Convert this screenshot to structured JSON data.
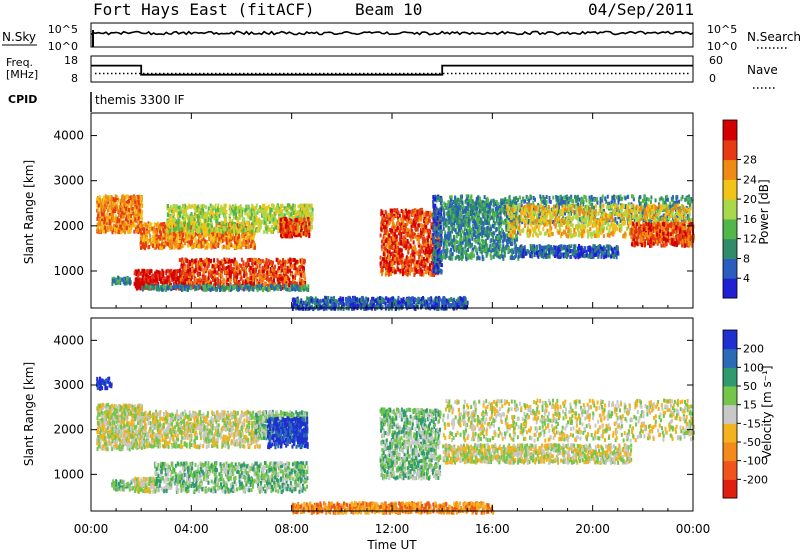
{
  "header": {
    "station": "Fort Hays East (fitACF)",
    "beam": "Beam 10",
    "date": "04/Sep/2011"
  },
  "noise_panel": {
    "left_label": "N.Sky",
    "right_label": "N.Search",
    "left_ticks": [
      "10^5",
      "10^0"
    ],
    "right_ticks": [
      "10^5",
      "10^0"
    ]
  },
  "freq_panel": {
    "left_label_line1": "Freq.",
    "left_label_line2": "[MHz]",
    "left_ticks": [
      "18",
      "8"
    ],
    "right_label": "Nave",
    "right_ticks": [
      "60",
      "0"
    ],
    "freq_steps": [
      {
        "start_hour": 0.0,
        "end_hour": 2.0,
        "freq_mhz": 14.3
      },
      {
        "start_hour": 2.0,
        "end_hour": 14.0,
        "freq_mhz": 10.8
      },
      {
        "start_hour": 14.0,
        "end_hour": 24.0,
        "freq_mhz": 14.3
      }
    ]
  },
  "cpid": {
    "label": "CPID",
    "value": "themis 3300 IF"
  },
  "x_axis": {
    "label": "Time UT",
    "ticks": [
      "00:00",
      "04:00",
      "08:00",
      "12:00",
      "16:00",
      "20:00",
      "00:00"
    ]
  },
  "chart_data": [
    {
      "type": "heatmap",
      "title": "",
      "xlabel": "Time UT",
      "ylabel": "Slant Range [km]",
      "xlim": [
        0,
        24
      ],
      "ylim": [
        180,
        4500
      ],
      "y_ticks": [
        "1000",
        "2000",
        "3000",
        "4000"
      ],
      "colorbar": {
        "label": "Power [dB]",
        "ticks": [
          "4",
          "8",
          "12",
          "16",
          "20",
          "24",
          "28"
        ],
        "colors": [
          "#1f1fd6",
          "#2a5dbf",
          "#2f8c6a",
          "#52b74a",
          "#a9d84a",
          "#f2c418",
          "#f08a12",
          "#e53a12",
          "#d40000"
        ]
      },
      "regions": [
        {
          "start_hour": 0.2,
          "end_hour": 2.0,
          "range_km": [
            1900,
            2700
          ],
          "level": 6
        },
        {
          "start_hour": 1.9,
          "end_hour": 6.5,
          "range_km": [
            1550,
            2100
          ],
          "level": 6
        },
        {
          "start_hour": 3.0,
          "end_hour": 8.8,
          "range_km": [
            1900,
            2500
          ],
          "level": 4
        },
        {
          "start_hour": 7.5,
          "end_hour": 8.7,
          "range_km": [
            1800,
            2200
          ],
          "level": 7
        },
        {
          "start_hour": 0.8,
          "end_hour": 1.6,
          "range_km": [
            750,
            900
          ],
          "level": 2
        },
        {
          "start_hour": 1.7,
          "end_hour": 4.0,
          "range_km": [
            650,
            1050
          ],
          "level": 8
        },
        {
          "start_hour": 3.5,
          "end_hour": 8.5,
          "range_km": [
            650,
            1300
          ],
          "level": 7
        },
        {
          "start_hour": 2.0,
          "end_hour": 8.7,
          "range_km": [
            620,
            720
          ],
          "level": 2
        },
        {
          "start_hour": 11.5,
          "end_hour": 13.9,
          "range_km": [
            950,
            2400
          ],
          "level": 7
        },
        {
          "start_hour": 13.6,
          "end_hour": 13.95,
          "range_km": [
            1000,
            2700
          ],
          "level": 1
        },
        {
          "start_hour": 14.0,
          "end_hour": 17.0,
          "range_km": [
            1300,
            2600
          ],
          "level": 2
        },
        {
          "start_hour": 14.2,
          "end_hour": 23.9,
          "range_km": [
            2100,
            2700
          ],
          "level": 2
        },
        {
          "start_hour": 16.5,
          "end_hour": 23.9,
          "range_km": [
            1800,
            2500
          ],
          "level": 5
        },
        {
          "start_hour": 21.5,
          "end_hour": 24.0,
          "range_km": [
            1600,
            2100
          ],
          "level": 7
        },
        {
          "start_hour": 17.0,
          "end_hour": 21.0,
          "range_km": [
            1350,
            1600
          ],
          "level": 1
        },
        {
          "start_hour": 8.0,
          "end_hour": 15.0,
          "range_km": [
            200,
            450
          ],
          "level": 1
        }
      ]
    },
    {
      "type": "heatmap",
      "title": "",
      "xlabel": "Time UT",
      "ylabel": "Slant Range [km]",
      "xlim": [
        0,
        24
      ],
      "ylim": [
        180,
        4500
      ],
      "y_ticks": [
        "1000",
        "2000",
        "3000",
        "4000"
      ],
      "colorbar": {
        "label": "Velocity [m s⁻¹]",
        "ticks": [
          "-200",
          "-100",
          "-50",
          "-15",
          "15",
          "50",
          "100",
          "200"
        ],
        "colors": [
          "#e11f0f",
          "#f0541a",
          "#f48a1a",
          "#f3b21f",
          "#c8c8c8",
          "#73c64a",
          "#2e9a6e",
          "#2a6bb8",
          "#1f2fd0"
        ]
      },
      "regions": [
        {
          "start_hour": 0.2,
          "end_hour": 2.0,
          "range_km": [
            1600,
            2600
          ],
          "level": 4
        },
        {
          "start_hour": 2.0,
          "end_hour": 6.7,
          "range_km": [
            1650,
            2450
          ],
          "level": 4
        },
        {
          "start_hour": 6.5,
          "end_hour": 8.6,
          "range_km": [
            1850,
            2450
          ],
          "level": 5
        },
        {
          "start_hour": 7.0,
          "end_hour": 8.6,
          "range_km": [
            1650,
            2300
          ],
          "level": 8
        },
        {
          "start_hour": 0.8,
          "end_hour": 1.6,
          "range_km": [
            700,
            900
          ],
          "level": 5
        },
        {
          "start_hour": 1.6,
          "end_hour": 2.6,
          "range_km": [
            650,
            950
          ],
          "level": 4
        },
        {
          "start_hour": 2.5,
          "end_hour": 8.6,
          "range_km": [
            650,
            1300
          ],
          "level": 5
        },
        {
          "start_hour": 0.2,
          "end_hour": 0.8,
          "range_km": [
            2950,
            3200
          ],
          "level": 8
        },
        {
          "start_hour": 11.5,
          "end_hour": 13.9,
          "range_km": [
            950,
            2500
          ],
          "level": 5
        },
        {
          "start_hour": 14.0,
          "end_hour": 24.0,
          "range_km": [
            1800,
            2700
          ],
          "level": 4
        },
        {
          "start_hour": 14.0,
          "end_hour": 21.5,
          "range_km": [
            1300,
            1700
          ],
          "level": 4
        },
        {
          "start_hour": 8.0,
          "end_hour": 16.0,
          "range_km": [
            180,
            400
          ],
          "level": 2
        }
      ]
    }
  ]
}
